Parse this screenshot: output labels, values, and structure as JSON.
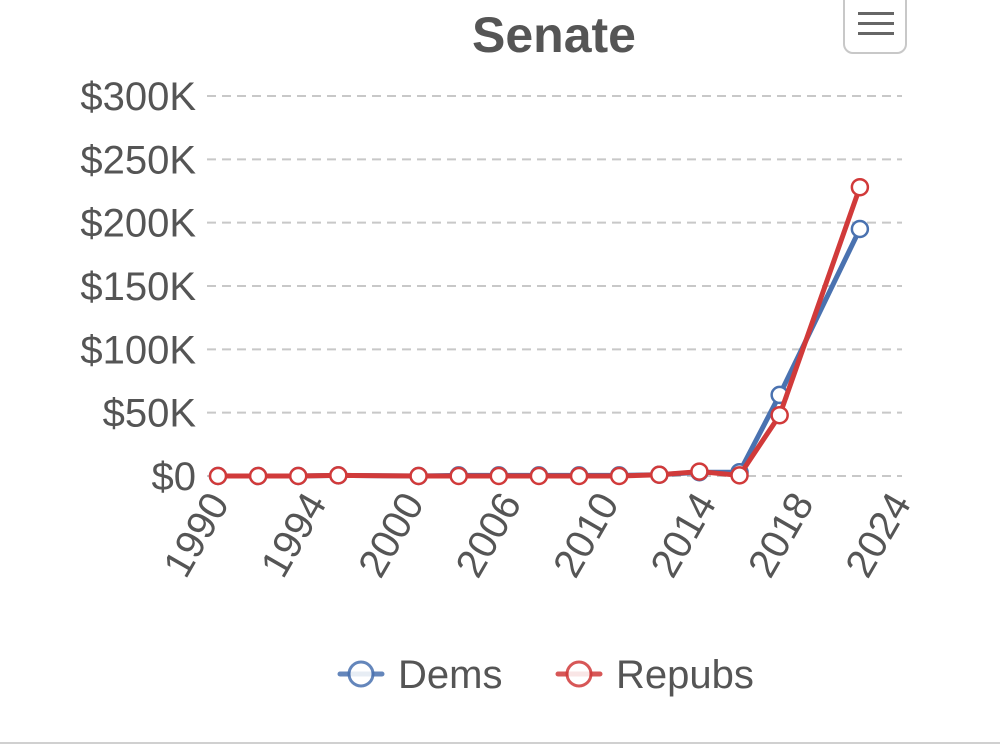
{
  "menu": {
    "icon": "hamburger-menu-icon"
  },
  "chart_data": {
    "type": "line",
    "title": "Senate",
    "xlabel": "",
    "ylabel": "",
    "ylim": [
      0,
      300000
    ],
    "yticks": [
      0,
      50000,
      100000,
      150000,
      200000,
      250000,
      300000
    ],
    "ytick_labels": [
      "$0",
      "$50K",
      "$100K",
      "$150K",
      "$200K",
      "$250K",
      "$300K"
    ],
    "x": [
      1990,
      1992,
      1994,
      1996,
      1998,
      2000,
      2002,
      2004,
      2006,
      2008,
      2010,
      2012,
      2014,
      2016,
      2018,
      2020,
      2022,
      2024
    ],
    "xtick_labels": [
      "1990",
      "1994",
      "2000",
      "2006",
      "2010",
      "2014",
      "2018",
      "2024"
    ],
    "grid": true,
    "legend_position": "bottom",
    "series": [
      {
        "name": "Dems",
        "color": "#4a72b0",
        "points": [
          {
            "x": 1990,
            "y": 0
          },
          {
            "x": 1992,
            "y": 0
          },
          {
            "x": 1994,
            "y": 0
          },
          {
            "x": 1996,
            "y": 500
          },
          {
            "x": 2000,
            "y": 0
          },
          {
            "x": 2002,
            "y": 500
          },
          {
            "x": 2004,
            "y": 500
          },
          {
            "x": 2006,
            "y": 500
          },
          {
            "x": 2008,
            "y": 500
          },
          {
            "x": 2010,
            "y": 500
          },
          {
            "x": 2012,
            "y": 1000
          },
          {
            "x": 2014,
            "y": 3000
          },
          {
            "x": 2016,
            "y": 3000
          },
          {
            "x": 2018,
            "y": 64000
          },
          {
            "x": 2022,
            "y": 195000
          }
        ]
      },
      {
        "name": "Repubs",
        "color": "#d13a3a",
        "points": [
          {
            "x": 1990,
            "y": 0
          },
          {
            "x": 1992,
            "y": 0
          },
          {
            "x": 1994,
            "y": 0
          },
          {
            "x": 1996,
            "y": 500
          },
          {
            "x": 2000,
            "y": 0
          },
          {
            "x": 2002,
            "y": 0
          },
          {
            "x": 2004,
            "y": 0
          },
          {
            "x": 2006,
            "y": 0
          },
          {
            "x": 2008,
            "y": 0
          },
          {
            "x": 2010,
            "y": 0
          },
          {
            "x": 2012,
            "y": 1000
          },
          {
            "x": 2014,
            "y": 3500
          },
          {
            "x": 2016,
            "y": 500
          },
          {
            "x": 2018,
            "y": 48000
          },
          {
            "x": 2022,
            "y": 228000
          }
        ]
      }
    ]
  }
}
